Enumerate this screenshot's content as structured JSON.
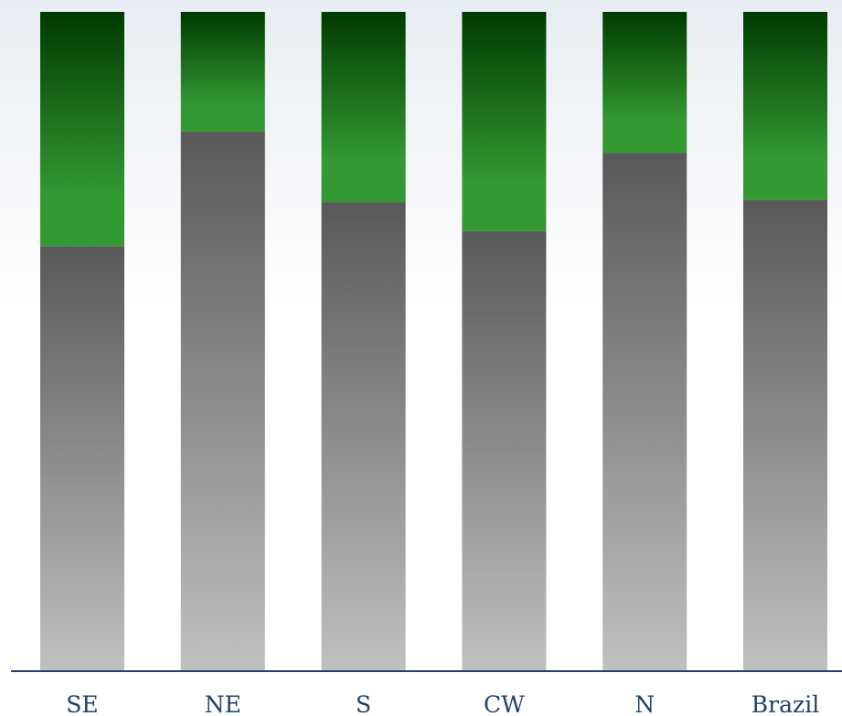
{
  "chart_data": {
    "type": "bar",
    "stacked": true,
    "categories": [
      "SE",
      "NE",
      "S",
      "CW",
      "N",
      "Brazil"
    ],
    "series": [
      {
        "values": [
          64.4,
          81.8,
          71.1,
          66.7,
          78.6,
          71.4
        ]
      },
      {
        "values": [
          35.6,
          18.2,
          28.9,
          33.3,
          21.4,
          28.6
        ]
      }
    ],
    "ylim": [
      0,
      100
    ],
    "grid": false,
    "legend": "none",
    "colors": {
      "bottom_top": "#595959",
      "bottom_base": "#c0c0c0",
      "top_top": "#003a00",
      "top_base": "#339933",
      "axis": "#1d4268",
      "label": "#1d4268"
    }
  }
}
